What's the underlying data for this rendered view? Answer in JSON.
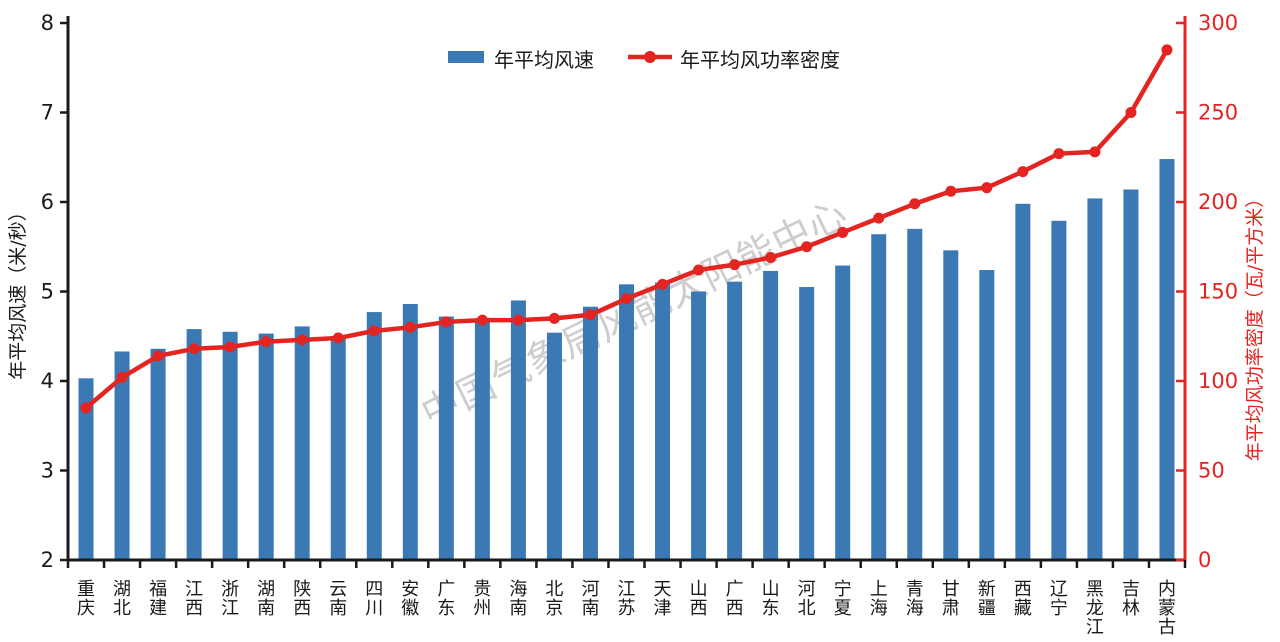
{
  "watermark": "中国气象局风能太阳能中心",
  "colors": {
    "bar": "#3B79B5",
    "line": "#E32420",
    "axis": "#1A1A1A",
    "watermark": "#9B9B9B"
  },
  "chart_data": {
    "type": "bar",
    "subtype": "bar+line dual axis",
    "categories": [
      "重庆",
      "湖北",
      "福建",
      "江西",
      "浙江",
      "湖南",
      "陕西",
      "云南",
      "四川",
      "安徽",
      "广东",
      "贵州",
      "海南",
      "北京",
      "河南",
      "江苏",
      "天津",
      "山西",
      "广西",
      "山东",
      "河北",
      "宁夏",
      "上海",
      "青海",
      "甘肃",
      "新疆",
      "西藏",
      "辽宁",
      "黑龙江",
      "吉林",
      "内蒙古"
    ],
    "series": [
      {
        "name": "年平均风速",
        "type": "bar",
        "axis": "left",
        "unit": "米/秒",
        "values": [
          4.03,
          4.33,
          4.36,
          4.58,
          4.55,
          4.53,
          4.61,
          4.5,
          4.77,
          4.86,
          4.72,
          4.66,
          4.9,
          4.54,
          4.83,
          5.08,
          5.1,
          5.0,
          5.11,
          5.23,
          5.05,
          5.29,
          5.64,
          5.7,
          5.46,
          5.24,
          5.98,
          5.79,
          6.04,
          6.14,
          6.48
        ]
      },
      {
        "name": "年平均风功率密度",
        "type": "line",
        "axis": "right",
        "unit": "瓦/平方米",
        "values": [
          85,
          102,
          114,
          118,
          119,
          122,
          123,
          124,
          128,
          130,
          133,
          134,
          134,
          135,
          137,
          146,
          154,
          162,
          165,
          169,
          175,
          183,
          191,
          199,
          206,
          208,
          217,
          227,
          228,
          250,
          285
        ]
      }
    ],
    "left_axis": {
      "label": "年平均风速（米/秒）",
      "min": 2,
      "max": 8,
      "step": 1
    },
    "right_axis": {
      "label": "年平均风功率密度（瓦/平方米）",
      "min": 0,
      "max": 300,
      "step": 50
    },
    "grid": false,
    "legend_position": "top-center"
  }
}
